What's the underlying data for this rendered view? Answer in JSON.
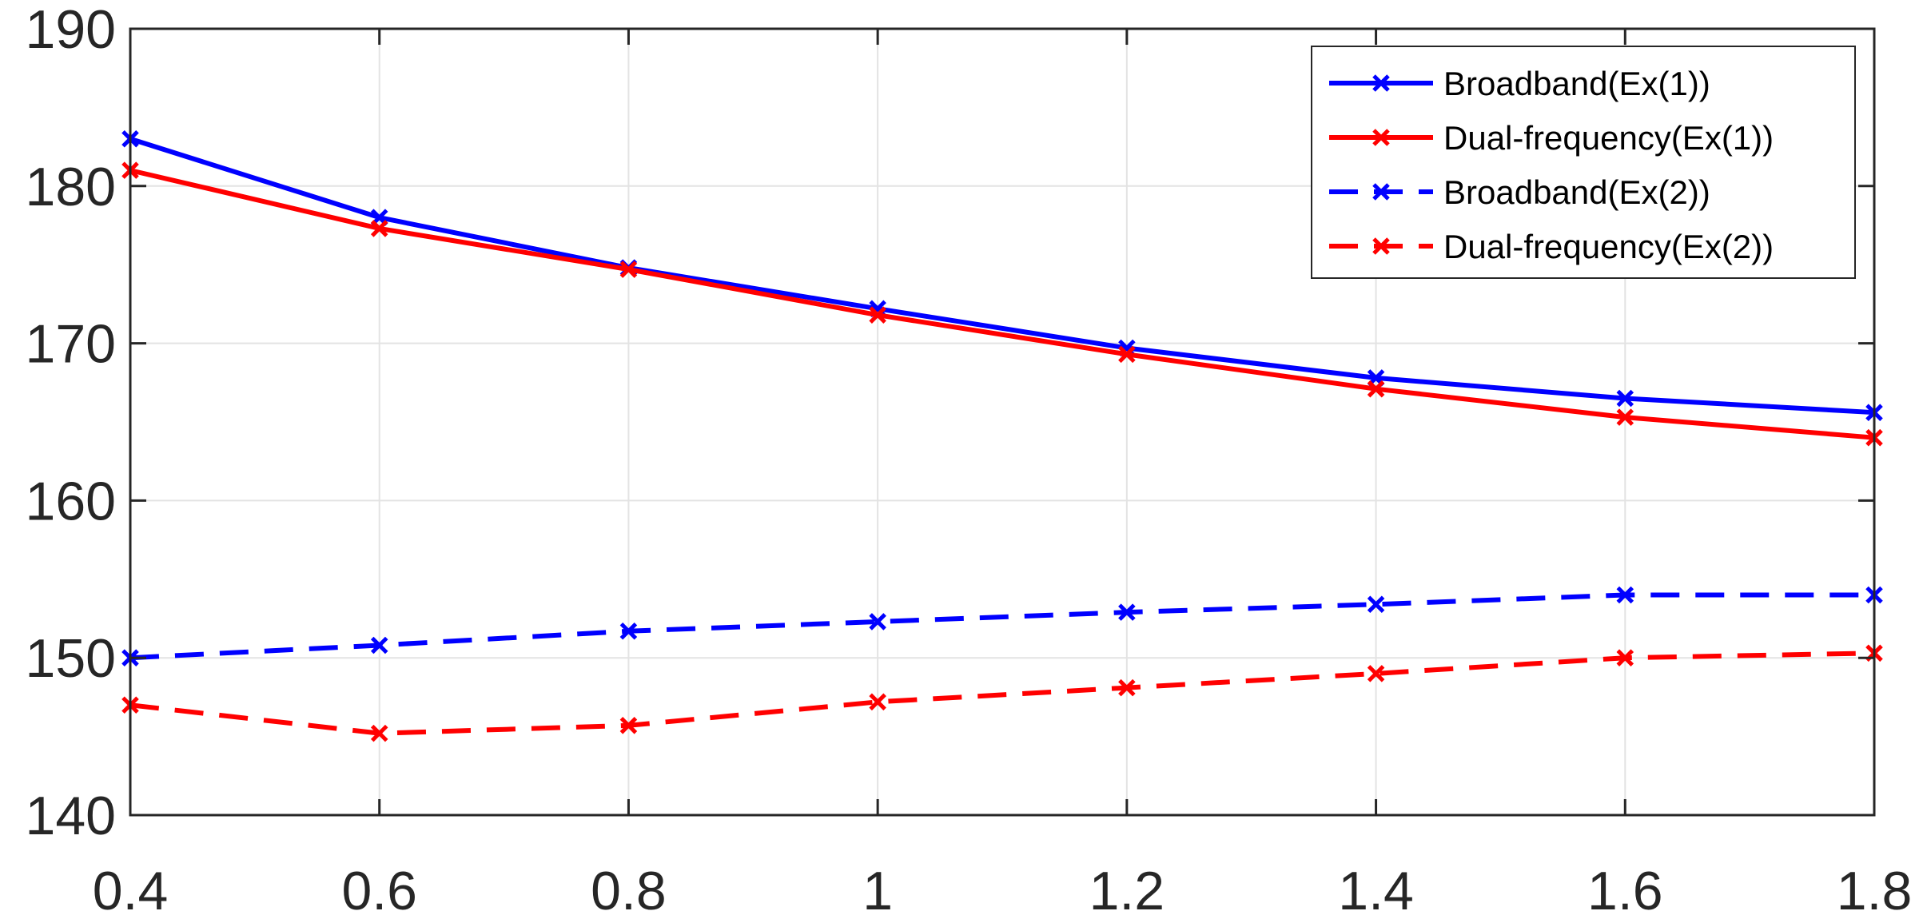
{
  "chart_data": {
    "type": "line",
    "title": "",
    "xlabel": "",
    "ylabel": "",
    "xlim": [
      0.4,
      1.8
    ],
    "ylim": [
      140,
      190
    ],
    "x_ticks": [
      "0.4",
      "0.6",
      "0.8",
      "1",
      "1.2",
      "1.4",
      "1.6",
      "1.8"
    ],
    "y_ticks": [
      "140",
      "150",
      "160",
      "170",
      "180",
      "190"
    ],
    "grid": true,
    "legend_position": "top-right",
    "x": [
      0.4,
      0.6,
      0.8,
      1.0,
      1.2,
      1.4,
      1.6,
      1.8
    ],
    "series": [
      {
        "name": "Broadband(Ex(1))",
        "color": "#0000ff",
        "line_style": "solid",
        "marker": "x",
        "values": [
          183.0,
          178.0,
          174.8,
          172.2,
          169.7,
          167.8,
          166.5,
          165.6
        ]
      },
      {
        "name": "Dual-frequency(Ex(1))",
        "color": "#ff0000",
        "line_style": "solid",
        "marker": "x",
        "values": [
          181.0,
          177.3,
          174.7,
          171.8,
          169.3,
          167.1,
          165.3,
          164.0
        ]
      },
      {
        "name": "Broadband(Ex(2))",
        "color": "#0000ff",
        "line_style": "dashed",
        "marker": "x",
        "values": [
          150.0,
          150.8,
          151.7,
          152.3,
          152.9,
          153.4,
          154.0,
          154.0
        ]
      },
      {
        "name": "Dual-frequency(Ex(2))",
        "color": "#ff0000",
        "line_style": "dashed",
        "marker": "x",
        "values": [
          147.0,
          145.2,
          145.7,
          147.2,
          148.1,
          149.0,
          150.0,
          150.3
        ]
      }
    ]
  }
}
